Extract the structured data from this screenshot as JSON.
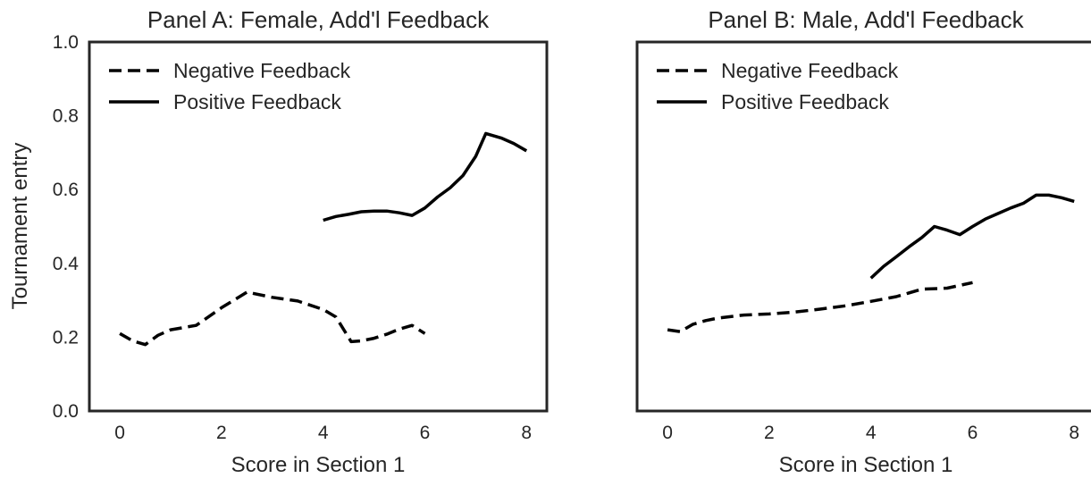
{
  "figure": {
    "ylabel": "Tournament entry",
    "line_color": "#000000"
  },
  "chart_data": [
    {
      "type": "line",
      "title": "Panel A: Female, Add'l Feedback",
      "xlabel": "Score in Section 1",
      "ylabel": "Tournament entry",
      "xlim": [
        -0.6,
        8.4
      ],
      "ylim": [
        0.0,
        1.0
      ],
      "xticks": [
        0,
        2,
        4,
        6,
        8
      ],
      "yticks": [
        0.0,
        0.2,
        0.4,
        0.6,
        0.8,
        1.0
      ],
      "grid": false,
      "legend": "top-left",
      "series": [
        {
          "name": "Negative Feedback",
          "style": "dashed",
          "x": [
            0.0,
            0.25,
            0.5,
            0.75,
            1.0,
            1.5,
            2.0,
            2.5,
            3.0,
            3.5,
            4.0,
            4.25,
            4.55,
            4.75,
            5.0,
            5.25,
            5.5,
            5.75,
            6.0
          ],
          "y": [
            0.21,
            0.19,
            0.18,
            0.205,
            0.22,
            0.232,
            0.28,
            0.322,
            0.308,
            0.298,
            0.275,
            0.255,
            0.188,
            0.19,
            0.197,
            0.208,
            0.222,
            0.232,
            0.21
          ]
        },
        {
          "name": "Positive Feedback",
          "style": "solid",
          "x": [
            4.0,
            4.25,
            4.5,
            4.75,
            5.0,
            5.25,
            5.5,
            5.75,
            6.0,
            6.25,
            6.5,
            6.75,
            7.0,
            7.2,
            7.5,
            7.75,
            8.0
          ],
          "y": [
            0.517,
            0.527,
            0.533,
            0.54,
            0.542,
            0.542,
            0.537,
            0.53,
            0.55,
            0.58,
            0.605,
            0.638,
            0.69,
            0.752,
            0.74,
            0.725,
            0.705
          ]
        }
      ]
    },
    {
      "type": "line",
      "title": "Panel B: Male, Add'l Feedback",
      "xlabel": "Score in Section 1",
      "ylabel": "",
      "xlim": [
        -0.6,
        8.4
      ],
      "ylim": [
        0.0,
        1.0
      ],
      "xticks": [
        0,
        2,
        4,
        6,
        8
      ],
      "yticks": [],
      "grid": false,
      "legend": "top-left",
      "series": [
        {
          "name": "Negative Feedback",
          "style": "dashed",
          "x": [
            0.0,
            0.25,
            0.5,
            0.75,
            1.0,
            1.5,
            2.0,
            2.5,
            3.0,
            3.5,
            4.0,
            4.5,
            5.0,
            5.5,
            6.0
          ],
          "y": [
            0.22,
            0.215,
            0.235,
            0.245,
            0.252,
            0.26,
            0.263,
            0.268,
            0.276,
            0.285,
            0.297,
            0.31,
            0.33,
            0.333,
            0.348
          ]
        },
        {
          "name": "Positive Feedback",
          "style": "solid",
          "x": [
            4.0,
            4.25,
            4.5,
            4.75,
            5.0,
            5.25,
            5.5,
            5.75,
            6.0,
            6.25,
            6.5,
            6.75,
            7.0,
            7.25,
            7.5,
            7.75,
            8.0
          ],
          "y": [
            0.36,
            0.392,
            0.418,
            0.445,
            0.47,
            0.5,
            0.49,
            0.478,
            0.5,
            0.52,
            0.535,
            0.55,
            0.563,
            0.585,
            0.585,
            0.578,
            0.568
          ]
        }
      ]
    }
  ]
}
